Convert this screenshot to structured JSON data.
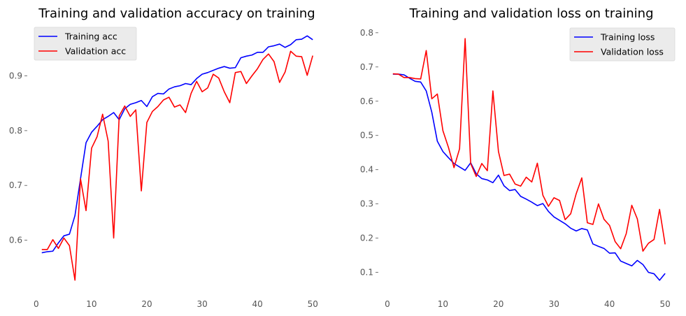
{
  "chart_data": [
    {
      "type": "line",
      "title": "Training and validation accuracy on training",
      "xlabel": "",
      "ylabel": "",
      "xlim": [
        -1.5,
        52.5
      ],
      "ylim": [
        0.505,
        0.99
      ],
      "xticks": [
        0,
        10,
        20,
        30,
        40,
        50
      ],
      "yticks": [
        0.6,
        0.7,
        0.8,
        0.9
      ],
      "ytick_labels": [
        "0.6",
        "0.7",
        "0.8",
        "0.9"
      ],
      "grid": false,
      "legend_position": "top-left",
      "x": [
        1,
        2,
        3,
        4,
        5,
        6,
        7,
        8,
        9,
        10,
        11,
        12,
        13,
        14,
        15,
        16,
        17,
        18,
        19,
        20,
        21,
        22,
        23,
        24,
        25,
        26,
        27,
        28,
        29,
        30,
        31,
        32,
        33,
        34,
        35,
        36,
        37,
        38,
        39,
        40,
        41,
        42,
        43,
        44,
        45,
        46,
        47,
        48,
        49,
        50
      ],
      "series": [
        {
          "name": "Training acc",
          "color": "#0000ff",
          "values": [
            0.577,
            0.579,
            0.58,
            0.595,
            0.608,
            0.611,
            0.645,
            0.712,
            0.778,
            0.797,
            0.808,
            0.82,
            0.826,
            0.833,
            0.82,
            0.84,
            0.848,
            0.851,
            0.855,
            0.844,
            0.862,
            0.868,
            0.867,
            0.876,
            0.88,
            0.882,
            0.886,
            0.884,
            0.895,
            0.903,
            0.906,
            0.91,
            0.914,
            0.917,
            0.914,
            0.915,
            0.933,
            0.936,
            0.938,
            0.943,
            0.943,
            0.953,
            0.955,
            0.958,
            0.952,
            0.957,
            0.966,
            0.967,
            0.973,
            0.966
          ]
        },
        {
          "name": "Validation acc",
          "color": "#ff0000",
          "values": [
            0.583,
            0.583,
            0.601,
            0.585,
            0.604,
            0.59,
            0.527,
            0.712,
            0.654,
            0.768,
            0.789,
            0.83,
            0.781,
            0.604,
            0.827,
            0.845,
            0.826,
            0.838,
            0.69,
            0.815,
            0.835,
            0.844,
            0.856,
            0.861,
            0.843,
            0.847,
            0.833,
            0.868,
            0.89,
            0.871,
            0.878,
            0.903,
            0.896,
            0.871,
            0.851,
            0.906,
            0.908,
            0.886,
            0.9,
            0.913,
            0.93,
            0.94,
            0.926,
            0.888,
            0.907,
            0.945,
            0.936,
            0.935,
            0.901,
            0.937
          ]
        }
      ]
    },
    {
      "type": "line",
      "title": "Training and validation loss on training",
      "xlabel": "",
      "ylabel": "",
      "xlim": [
        -1.5,
        52.5
      ],
      "ylim": [
        0.042,
        0.818
      ],
      "xticks": [
        0,
        10,
        20,
        30,
        40,
        50
      ],
      "yticks": [
        0.1,
        0.2,
        0.3,
        0.4,
        0.5,
        0.6,
        0.7,
        0.8
      ],
      "ytick_labels": [
        "0.1",
        "0.2",
        "0.3",
        "0.4",
        "0.5",
        "0.6",
        "0.7",
        "0.8"
      ],
      "grid": false,
      "legend_position": "top-right",
      "x": [
        1,
        2,
        3,
        4,
        5,
        6,
        7,
        8,
        9,
        10,
        11,
        12,
        13,
        14,
        15,
        16,
        17,
        18,
        19,
        20,
        21,
        22,
        23,
        24,
        25,
        26,
        27,
        28,
        29,
        30,
        31,
        32,
        33,
        34,
        35,
        36,
        37,
        38,
        39,
        40,
        41,
        42,
        43,
        44,
        45,
        46,
        47,
        48,
        49,
        50
      ],
      "series": [
        {
          "name": "Training loss",
          "color": "#0000ff",
          "values": [
            0.679,
            0.679,
            0.677,
            0.667,
            0.658,
            0.656,
            0.63,
            0.568,
            0.483,
            0.453,
            0.435,
            0.418,
            0.408,
            0.398,
            0.42,
            0.388,
            0.374,
            0.37,
            0.362,
            0.384,
            0.353,
            0.339,
            0.342,
            0.322,
            0.314,
            0.305,
            0.295,
            0.301,
            0.278,
            0.262,
            0.252,
            0.242,
            0.229,
            0.221,
            0.228,
            0.224,
            0.183,
            0.176,
            0.17,
            0.156,
            0.157,
            0.133,
            0.126,
            0.119,
            0.135,
            0.123,
            0.1,
            0.096,
            0.077,
            0.097
          ]
        },
        {
          "name": "Validation loss",
          "color": "#ff0000",
          "values": [
            0.68,
            0.679,
            0.669,
            0.669,
            0.666,
            0.665,
            0.748,
            0.607,
            0.621,
            0.514,
            0.465,
            0.406,
            0.461,
            0.783,
            0.418,
            0.38,
            0.418,
            0.397,
            0.63,
            0.453,
            0.383,
            0.387,
            0.358,
            0.352,
            0.378,
            0.364,
            0.419,
            0.325,
            0.293,
            0.318,
            0.31,
            0.254,
            0.271,
            0.33,
            0.376,
            0.245,
            0.24,
            0.3,
            0.255,
            0.237,
            0.19,
            0.169,
            0.213,
            0.296,
            0.256,
            0.162,
            0.185,
            0.196,
            0.284,
            0.182
          ]
        }
      ]
    }
  ]
}
